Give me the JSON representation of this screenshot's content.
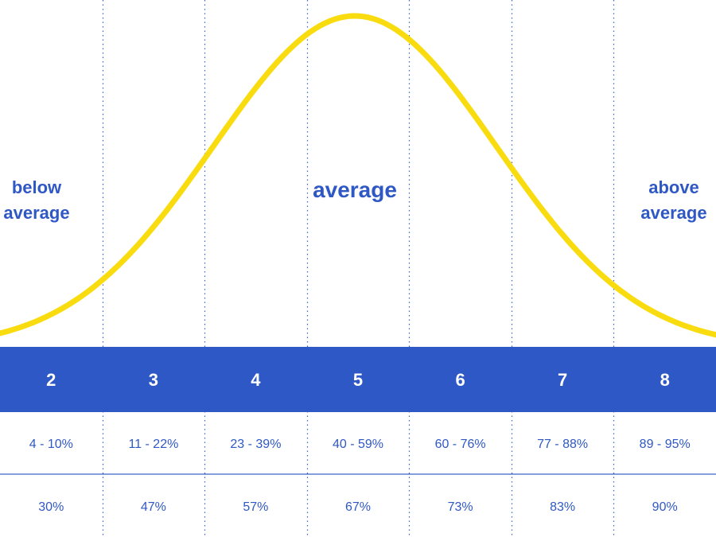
{
  "colors": {
    "curve": "#f9dc0f",
    "band": "#2d58c6",
    "text": "#2f58c4",
    "divider": "#3a63c9"
  },
  "labels": {
    "below": [
      "below",
      "average"
    ],
    "average": "average",
    "above": [
      "above",
      "average"
    ]
  },
  "columns": [
    {
      "score": "2",
      "range": "4 - 10%",
      "value": "30%"
    },
    {
      "score": "3",
      "range": "11 - 22%",
      "value": "47%"
    },
    {
      "score": "4",
      "range": "23 - 39%",
      "value": "57%"
    },
    {
      "score": "5",
      "range": "40 - 59%",
      "value": "67%"
    },
    {
      "score": "6",
      "range": "60 - 76%",
      "value": "73%"
    },
    {
      "score": "7",
      "range": "77 - 88%",
      "value": "83%"
    },
    {
      "score": "8",
      "range": "89 - 95%",
      "value": "90%"
    }
  ]
}
